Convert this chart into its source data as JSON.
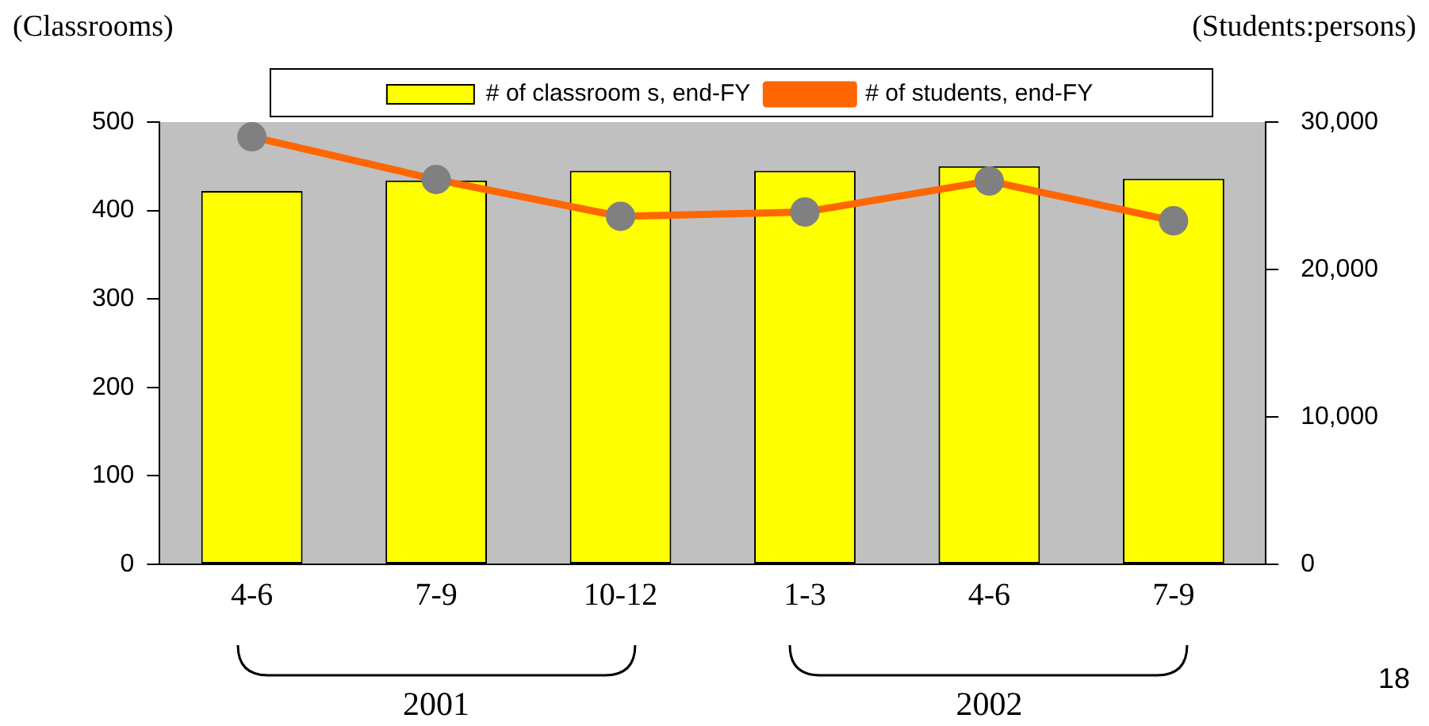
{
  "chart_data": {
    "type": "bar",
    "categories": [
      "4-6",
      "7-9",
      "10-12",
      "1-3",
      "4-6",
      "7-9"
    ],
    "ylabel": "(Classrooms)",
    "y2label": "(Students:persons)",
    "series": [
      {
        "name": "# of classroom s, end-FY",
        "color": "#ffff00",
        "values": [
          422,
          434,
          445,
          445,
          450,
          436
        ]
      },
      {
        "name": "# of students, end-FY",
        "type": "line",
        "axis": "y2",
        "color": "#ff6600",
        "marker": "circle",
        "values": [
          29000,
          26100,
          23600,
          23900,
          26000,
          23300
        ]
      }
    ],
    "ylim": [
      0,
      500
    ],
    "yticks": [
      0,
      100,
      200,
      300,
      400,
      500
    ],
    "y2lim": [
      0,
      30000
    ],
    "y2ticks": [
      0,
      {
        "value": 10000,
        "label": "10,000"
      },
      {
        "value": 20000,
        "label": "20,000"
      },
      {
        "value": 30000,
        "label": "30,000"
      }
    ],
    "grid": false,
    "legend": "top",
    "annotations": [
      "2001",
      "2002",
      "18"
    ]
  }
}
